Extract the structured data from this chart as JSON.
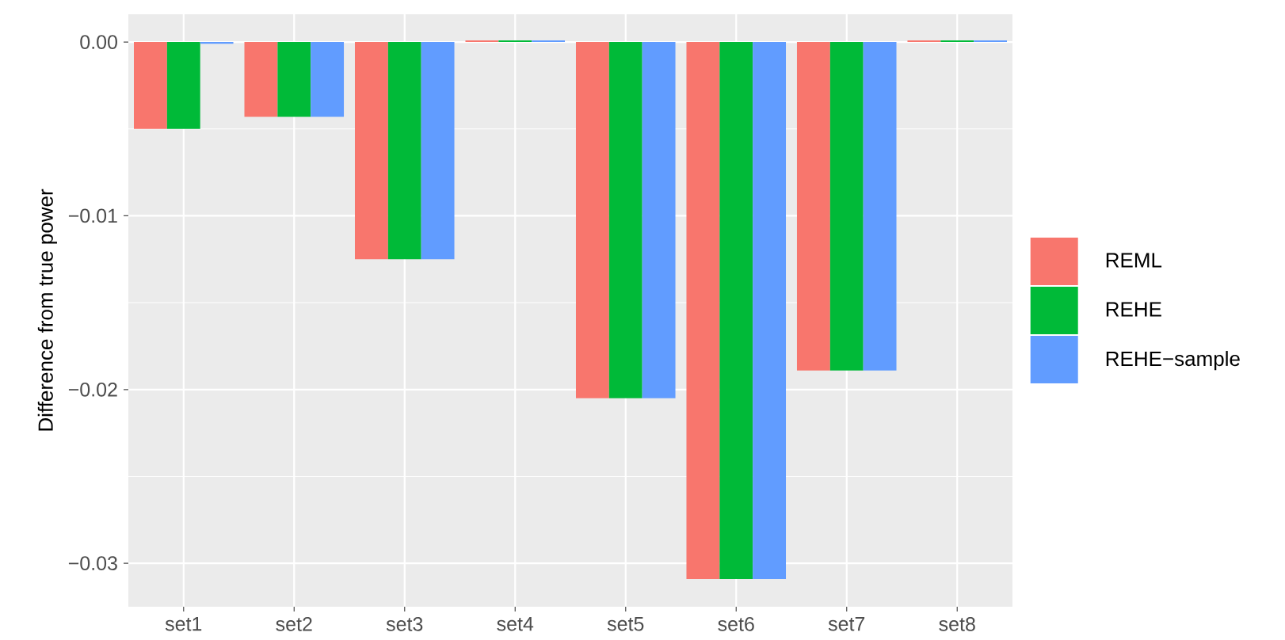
{
  "chart_data": {
    "type": "bar",
    "ylabel": "Difference from true power",
    "categories": [
      "set1",
      "set2",
      "set3",
      "set4",
      "set5",
      "set6",
      "set7",
      "set8"
    ],
    "series": [
      {
        "name": "REML",
        "color": "#f8766d",
        "values": [
          -0.005,
          -0.0043,
          -0.0125,
          0.0001,
          -0.0205,
          -0.0309,
          -0.0189,
          0.0001
        ]
      },
      {
        "name": "REHE",
        "color": "#00ba38",
        "values": [
          -0.005,
          -0.0043,
          -0.0125,
          0.0001,
          -0.0205,
          -0.0309,
          -0.0189,
          0.0001
        ]
      },
      {
        "name": "REHE−sample",
        "color": "#619cff",
        "values": [
          -0.0001,
          -0.0043,
          -0.0125,
          0.0001,
          -0.0205,
          -0.0309,
          -0.0189,
          0.0001
        ]
      }
    ],
    "ylim": [
      -0.0325,
      0.0016
    ],
    "yticks": [
      {
        "value": 0,
        "label": "0.00"
      },
      {
        "value": -0.01,
        "label": "−0.01"
      },
      {
        "value": -0.02,
        "label": "−0.02"
      },
      {
        "value": -0.03,
        "label": "−0.03"
      }
    ],
    "grid": true,
    "legend": "right"
  }
}
